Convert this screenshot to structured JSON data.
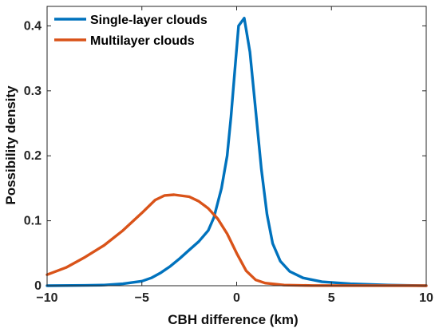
{
  "chart_data": {
    "type": "line",
    "xlabel": "CBH difference (km)",
    "ylabel": "Possibility density",
    "xlim": [
      -10,
      10
    ],
    "ylim": [
      0,
      0.43
    ],
    "x_ticks": [
      "−10",
      "−5",
      "0",
      "5",
      "10"
    ],
    "y_ticks": [
      "0",
      "0.1",
      "0.2",
      "0.3",
      "0.4"
    ],
    "x_tick_values": [
      -10,
      -5,
      0,
      5,
      10
    ],
    "y_tick_values": [
      0,
      0.1,
      0.2,
      0.3,
      0.4
    ],
    "grid": false,
    "legend_position": "top-left",
    "series": [
      {
        "name": "Single-layer clouds",
        "color": "#0072BD",
        "points": [
          [
            -10,
            0
          ],
          [
            -8,
            0.0005
          ],
          [
            -7,
            0.001
          ],
          [
            -6,
            0.003
          ],
          [
            -5,
            0.007
          ],
          [
            -4.5,
            0.012
          ],
          [
            -4,
            0.02
          ],
          [
            -3.5,
            0.03
          ],
          [
            -3,
            0.042
          ],
          [
            -2.5,
            0.055
          ],
          [
            -2,
            0.068
          ],
          [
            -1.5,
            0.085
          ],
          [
            -1.2,
            0.105
          ],
          [
            -0.8,
            0.15
          ],
          [
            -0.5,
            0.2
          ],
          [
            -0.3,
            0.26
          ],
          [
            -0.1,
            0.33
          ],
          [
            0.1,
            0.4
          ],
          [
            0.4,
            0.412
          ],
          [
            0.7,
            0.36
          ],
          [
            1.0,
            0.27
          ],
          [
            1.3,
            0.18
          ],
          [
            1.6,
            0.11
          ],
          [
            1.9,
            0.065
          ],
          [
            2.3,
            0.038
          ],
          [
            2.8,
            0.022
          ],
          [
            3.5,
            0.012
          ],
          [
            4.5,
            0.006
          ],
          [
            6,
            0.003
          ],
          [
            8,
            0.001
          ],
          [
            10,
            0
          ]
        ]
      },
      {
        "name": "Multilayer clouds",
        "color": "#D95319",
        "points": [
          [
            -10,
            0.017
          ],
          [
            -9,
            0.028
          ],
          [
            -8,
            0.044
          ],
          [
            -7,
            0.062
          ],
          [
            -6,
            0.085
          ],
          [
            -5,
            0.112
          ],
          [
            -4.3,
            0.132
          ],
          [
            -3.8,
            0.139
          ],
          [
            -3.3,
            0.14
          ],
          [
            -2.5,
            0.137
          ],
          [
            -2,
            0.13
          ],
          [
            -1.5,
            0.119
          ],
          [
            -1,
            0.103
          ],
          [
            -0.5,
            0.08
          ],
          [
            0,
            0.05
          ],
          [
            0.5,
            0.023
          ],
          [
            1,
            0.009
          ],
          [
            1.5,
            0.004
          ],
          [
            2.5,
            0.001
          ],
          [
            4,
            0.0003
          ],
          [
            10,
            0
          ]
        ]
      }
    ]
  }
}
